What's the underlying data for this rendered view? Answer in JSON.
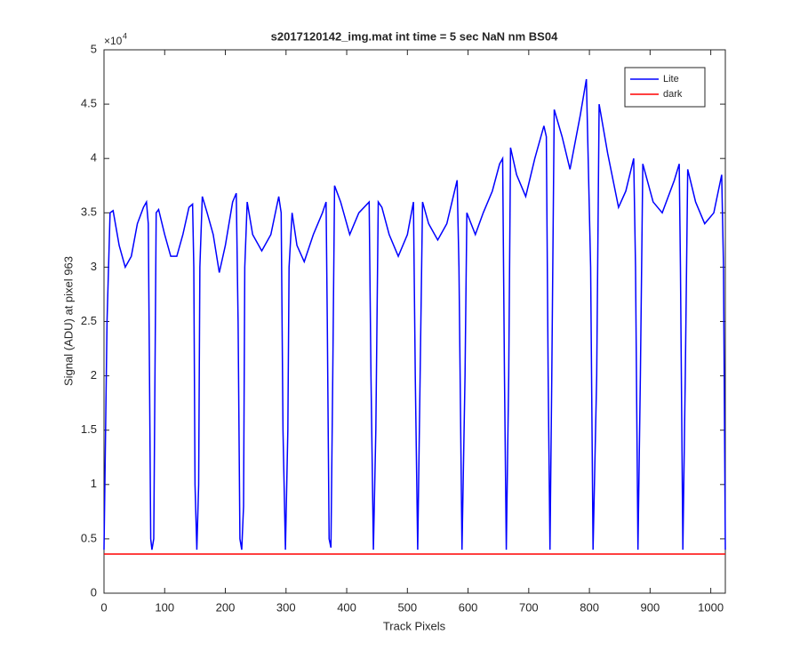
{
  "chart_data": {
    "type": "line",
    "title": "s2017120142_img.mat int time = 5 sec  NaN nm BS04",
    "xlabel": "Track Pixels",
    "ylabel": "Signal (ADU) at pixel 963",
    "y_multiplier_base": "×10",
    "y_multiplier_exponent": "4",
    "xlim": [
      0,
      1024
    ],
    "ylim": [
      0,
      50000
    ],
    "xticks": [
      0,
      100,
      200,
      300,
      400,
      500,
      600,
      700,
      800,
      900,
      1000
    ],
    "yticks": [
      0,
      {
        "value": 5000,
        "label": "0.5"
      },
      {
        "value": 10000,
        "label": "1"
      },
      {
        "value": 15000,
        "label": "1.5"
      },
      {
        "value": 20000,
        "label": "2"
      },
      {
        "value": 25000,
        "label": "2.5"
      },
      {
        "value": 30000,
        "label": "3"
      },
      {
        "value": 35000,
        "label": "3.5"
      },
      {
        "value": 40000,
        "label": "4"
      },
      {
        "value": 45000,
        "label": "4.5"
      },
      {
        "value": 50000,
        "label": "5"
      }
    ],
    "legend": "upper right",
    "grid": false,
    "series": [
      {
        "name": "Lite",
        "color": "#0000ff",
        "x": [
          0,
          5,
          10,
          15,
          25,
          35,
          45,
          55,
          65,
          70,
          73,
          75,
          77,
          79,
          82,
          84,
          86,
          90,
          100,
          110,
          120,
          130,
          140,
          146,
          148,
          150,
          153,
          156,
          158,
          162,
          170,
          180,
          190,
          200,
          212,
          218,
          221,
          224,
          227,
          230,
          232,
          236,
          245,
          260,
          275,
          288,
          292,
          295,
          299,
          303,
          305,
          310,
          318,
          330,
          345,
          360,
          366,
          368,
          371,
          374,
          377,
          380,
          390,
          405,
          420,
          437,
          440,
          444,
          448,
          452,
          458,
          470,
          485,
          500,
          510,
          513,
          517,
          521,
          525,
          535,
          550,
          565,
          582,
          585,
          590,
          595,
          598,
          612,
          625,
          640,
          652,
          657,
          660,
          663,
          667,
          670,
          680,
          695,
          710,
          725,
          729,
          732,
          735,
          738,
          742,
          755,
          768,
          785,
          795,
          802,
          806,
          812,
          816,
          830,
          848,
          860,
          873,
          876,
          880,
          884,
          888,
          905,
          920,
          940,
          948,
          950,
          954,
          958,
          962,
          975,
          990,
          1005,
          1018,
          1021,
          1024
        ],
        "values": [
          4000,
          25000,
          35000,
          35200,
          32000,
          30000,
          31000,
          34000,
          35500,
          36000,
          34000,
          20000,
          5000,
          4000,
          5000,
          20000,
          35000,
          35300,
          33000,
          31000,
          31000,
          33000,
          35500,
          35800,
          30000,
          10000,
          4000,
          10000,
          30000,
          36500,
          35000,
          33000,
          29500,
          32000,
          36000,
          36800,
          25000,
          5000,
          4000,
          8000,
          30000,
          36000,
          33000,
          31500,
          33000,
          36500,
          35000,
          15000,
          4000,
          15000,
          30000,
          35000,
          32000,
          30500,
          33000,
          35000,
          36000,
          25000,
          5000,
          4200,
          20000,
          37500,
          36000,
          33000,
          35000,
          36000,
          20000,
          4000,
          15000,
          36000,
          35500,
          33000,
          31000,
          33000,
          36000,
          20000,
          4000,
          20000,
          36000,
          34000,
          32500,
          34000,
          38000,
          30000,
          4000,
          20000,
          35000,
          33000,
          35000,
          37000,
          39500,
          40000,
          20000,
          4000,
          20000,
          41000,
          38500,
          36500,
          40000,
          43000,
          42000,
          20000,
          4000,
          20000,
          44500,
          42000,
          39000,
          44000,
          47300,
          30000,
          4000,
          20000,
          45000,
          40500,
          35500,
          37000,
          40000,
          30000,
          4000,
          20000,
          39500,
          36000,
          35000,
          38000,
          39500,
          30000,
          4000,
          20000,
          39000,
          36000,
          34000,
          35000,
          38500,
          30000,
          4000
        ]
      },
      {
        "name": "dark",
        "color": "#ff0000",
        "x": [
          0,
          128,
          256,
          384,
          512,
          640,
          768,
          896,
          1024
        ],
        "values": [
          3600,
          3600,
          3600,
          3600,
          3600,
          3600,
          3600,
          3600,
          3600
        ]
      }
    ]
  }
}
